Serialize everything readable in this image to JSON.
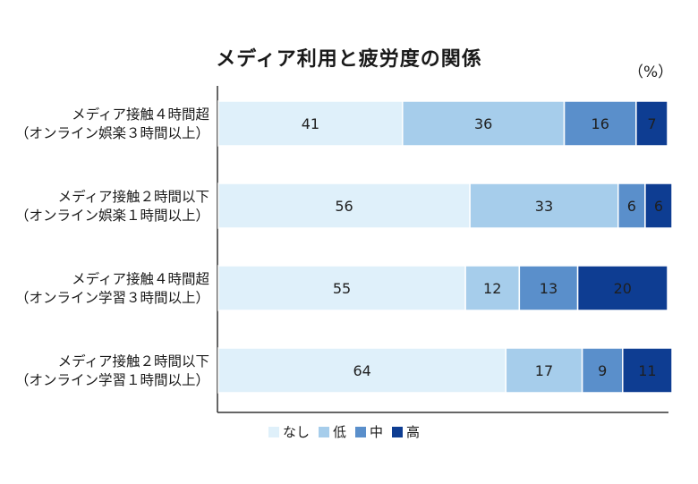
{
  "chart_data": {
    "type": "bar",
    "orientation": "horizontal",
    "stacked": true,
    "title": "メディア利用と疲労度の関係",
    "unit": "（%）",
    "categories": [
      [
        "メディア接触４時間超",
        "（オンライン娯楽３時間以上）"
      ],
      [
        "メディア接触２時間以下",
        "（オンライン娯楽１時間以上）"
      ],
      [
        "メディア接触４時間超",
        "（オンライン学習３時間以上）"
      ],
      [
        "メディア接触２時間以下",
        "（オンライン学習１時間以上）"
      ]
    ],
    "series": [
      {
        "name": "なし",
        "color": "#dff0fa",
        "values": [
          41,
          56,
          55,
          64
        ]
      },
      {
        "name": "低",
        "color": "#a6cdeb",
        "values": [
          36,
          33,
          12,
          17
        ]
      },
      {
        "name": "中",
        "color": "#5a8fcb",
        "values": [
          16,
          6,
          13,
          9
        ]
      },
      {
        "name": "高",
        "color": "#0e3d92",
        "values": [
          7,
          6,
          20,
          11
        ]
      }
    ],
    "xlim": [
      0,
      100
    ],
    "grid": false,
    "legend": "bottom"
  }
}
